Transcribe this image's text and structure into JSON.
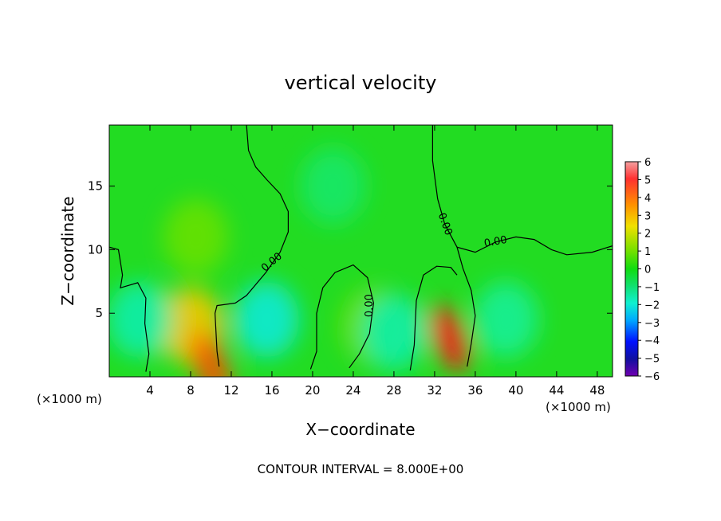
{
  "chart_data": {
    "type": "heatmap",
    "title": "vertical velocity",
    "xlabel": "X−coordinate",
    "ylabel": "Z−coordinate",
    "x_unit_left": "(×1000 m)",
    "x_unit_right": "(×1000 m)",
    "footer": "CONTOUR INTERVAL = 8.000E+00",
    "contour_label": "0.00",
    "xlim": [
      0,
      49.5
    ],
    "ylim": [
      0,
      19.8
    ],
    "x_ticks": [
      4,
      8,
      12,
      16,
      20,
      24,
      28,
      32,
      36,
      40,
      44,
      48
    ],
    "x_tick_labels": [
      "4",
      "8",
      "12",
      "16",
      "20",
      "24",
      "28",
      "32",
      "36",
      "40",
      "44",
      "48"
    ],
    "y_ticks": [
      5,
      10,
      15
    ],
    "y_tick_labels": [
      "5",
      "10",
      "15"
    ],
    "colorbar": {
      "min": -6,
      "max": 6,
      "ticks": [
        6,
        5,
        4,
        3,
        2,
        1,
        0,
        -1,
        -2,
        -3,
        -4,
        -5,
        -6
      ],
      "tick_labels": [
        "6",
        "5",
        "4",
        "3",
        "2",
        "1",
        "0",
        "−1",
        "−2",
        "−3",
        "−4",
        "−5",
        "−6"
      ]
    },
    "features": [
      {
        "kind": "updraft",
        "x": 8.0,
        "z": 4.0,
        "value": 2.5
      },
      {
        "kind": "updraft",
        "x": 10.0,
        "z": 0.8,
        "value": 4.0
      },
      {
        "kind": "updraft",
        "x": 33.5,
        "z": 3.0,
        "value": 5.0
      },
      {
        "kind": "updraft",
        "x": 8.5,
        "z": 11.0,
        "value": 0.9
      },
      {
        "kind": "updraft",
        "x": 26.0,
        "z": 4.0,
        "value": 1.0
      },
      {
        "kind": "downdraft",
        "x": 15.5,
        "z": 4.5,
        "value": -1.6
      },
      {
        "kind": "downdraft",
        "x": 3.0,
        "z": 4.5,
        "value": -1.2
      },
      {
        "kind": "downdraft",
        "x": 28.0,
        "z": 3.5,
        "value": -1.2
      },
      {
        "kind": "downdraft",
        "x": 39.0,
        "z": 4.5,
        "value": -1.0
      },
      {
        "kind": "downdraft",
        "x": 22.0,
        "z": 15.0,
        "value": -0.6
      }
    ],
    "zero_contours": [
      [
        [
          0,
          10.2
        ],
        [
          0.9,
          10.0
        ],
        [
          1.3,
          8.0
        ],
        [
          1.1,
          7.0
        ],
        [
          2.8,
          7.4
        ],
        [
          3.6,
          6.2
        ],
        [
          3.5,
          4.2
        ],
        [
          3.9,
          1.8
        ],
        [
          3.6,
          0.4
        ]
      ],
      [
        [
          13.5,
          19.8
        ],
        [
          13.7,
          17.8
        ],
        [
          14.4,
          16.5
        ],
        [
          15.5,
          15.5
        ],
        [
          16.8,
          14.4
        ],
        [
          17.6,
          13.0
        ],
        [
          17.6,
          11.4
        ],
        [
          16.8,
          9.8
        ],
        [
          15.4,
          8.2
        ],
        [
          13.5,
          6.4
        ],
        [
          12.4,
          5.8
        ],
        [
          10.6,
          5.6
        ],
        [
          10.4,
          5.0
        ],
        [
          10.6,
          2.0
        ],
        [
          10.8,
          0.8
        ]
      ],
      [
        [
          19.8,
          0.6
        ],
        [
          20.4,
          2.0
        ],
        [
          20.4,
          5.0
        ],
        [
          21.0,
          7.0
        ],
        [
          22.2,
          8.2
        ],
        [
          24.0,
          8.8
        ],
        [
          25.4,
          7.8
        ],
        [
          26.0,
          5.8
        ],
        [
          25.6,
          3.4
        ],
        [
          24.6,
          1.8
        ],
        [
          23.6,
          0.7
        ]
      ],
      [
        [
          31.8,
          19.8
        ],
        [
          31.8,
          17.0
        ],
        [
          32.3,
          14.0
        ],
        [
          33.0,
          12.0
        ],
        [
          34.2,
          10.2
        ],
        [
          36.0,
          9.8
        ],
        [
          38.0,
          10.6
        ],
        [
          40.0,
          11.0
        ],
        [
          41.8,
          10.8
        ],
        [
          43.5,
          10.0
        ],
        [
          45.0,
          9.6
        ],
        [
          47.5,
          9.8
        ],
        [
          49.5,
          10.3
        ]
      ],
      [
        [
          34.2,
          10.2
        ],
        [
          34.8,
          8.5
        ],
        [
          35.6,
          6.8
        ],
        [
          36.0,
          4.8
        ],
        [
          35.6,
          2.6
        ],
        [
          35.2,
          0.8
        ]
      ],
      [
        [
          29.6,
          0.5
        ],
        [
          30.0,
          2.5
        ],
        [
          30.2,
          6.0
        ],
        [
          30.9,
          8.0
        ],
        [
          32.2,
          8.7
        ],
        [
          33.6,
          8.6
        ],
        [
          34.2,
          8.0
        ]
      ]
    ],
    "contour_label_positions": [
      {
        "x": 16.0,
        "z": 9.0,
        "angle": -40
      },
      {
        "x": 25.6,
        "z": 5.6,
        "angle": -90
      },
      {
        "x": 33.0,
        "z": 12.0,
        "angle": 70
      },
      {
        "x": 38.0,
        "z": 10.6,
        "angle": -10
      }
    ]
  }
}
